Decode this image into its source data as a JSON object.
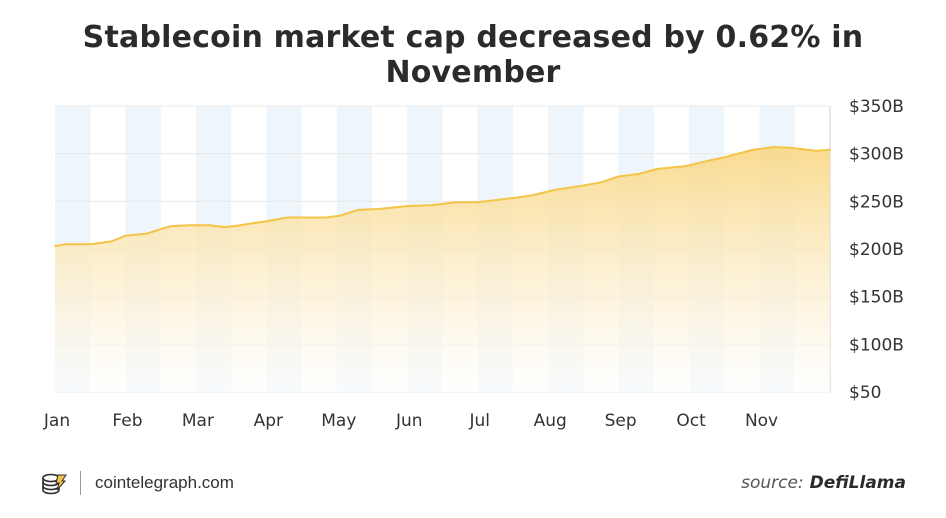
{
  "title": "Stablecoin market cap decreased by 0.62% in November",
  "footer": {
    "brand_text": "cointelegraph.com",
    "source_prefix": "source:",
    "source_name": "DefiLlama"
  },
  "colors": {
    "line": "#f3c447",
    "fill_top": "#f9d98a",
    "fill_bottom": "#ffffff",
    "band": "#eef5fb",
    "grid": "#e8e8e8",
    "text": "#333333"
  },
  "chart_data": {
    "type": "area",
    "title": "Stablecoin market cap decreased by 0.62% in November",
    "xlabel": "",
    "ylabel": "",
    "ylim": [
      50,
      350
    ],
    "y_ticks": [
      50,
      100,
      150,
      200,
      250,
      300,
      350
    ],
    "y_tick_labels": [
      "$50",
      "$100B",
      "$150B",
      "$200B",
      "$250B",
      "$300B",
      "$350B"
    ],
    "x_tick_labels": [
      "Jan",
      "Feb",
      "Mar",
      "Apr",
      "May",
      "Jun",
      "Jul",
      "Aug",
      "Sep",
      "Oct",
      "Nov"
    ],
    "x_range": [
      0,
      11
    ],
    "grid": true,
    "alternating_month_bands": true,
    "series": [
      {
        "x": [
          0,
          0.15,
          0.5,
          0.8,
          1.0,
          1.3,
          1.55,
          1.65,
          1.9,
          2.2,
          2.4,
          2.55,
          2.8,
          3.0,
          3.3,
          3.55,
          3.85,
          4.05,
          4.3,
          4.6,
          5.0,
          5.35,
          5.7,
          6.0,
          6.45,
          6.75,
          7.1,
          7.45,
          7.75,
          8.0,
          8.3,
          8.55,
          8.95,
          9.3,
          9.55,
          9.9,
          10.2,
          10.45,
          10.8,
          11.0
        ],
        "values": [
          203,
          205,
          205,
          208,
          214,
          216,
          222,
          224,
          225,
          225,
          223,
          224,
          227,
          229,
          233,
          233,
          233,
          235,
          241,
          242,
          245,
          246,
          249,
          249,
          253,
          256,
          262,
          266,
          270,
          276,
          279,
          284,
          287,
          293,
          297,
          304,
          307,
          306,
          303,
          304
        ]
      }
    ]
  }
}
